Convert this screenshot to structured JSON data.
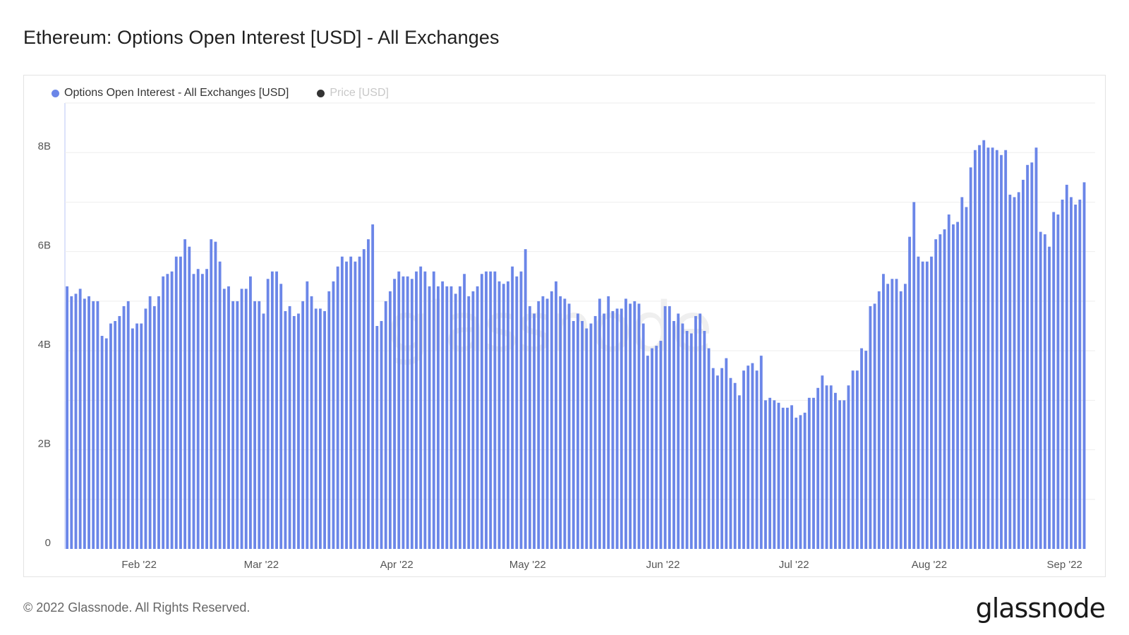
{
  "title": "Ethereum: Options Open Interest [USD] - All Exchanges",
  "footer": "© 2022 Glassnode. All Rights Reserved.",
  "brand": "glassnode",
  "watermark": "glassnode",
  "chart_data": {
    "type": "bar",
    "legend": [
      {
        "name": "Options Open Interest - All Exchanges [USD]",
        "color": "#6b86e8",
        "active": true
      },
      {
        "name": "Price [USD]",
        "color": "#333333",
        "active": false
      }
    ],
    "legend_position": "top-left",
    "grid": true,
    "x_start": "2022-01-15",
    "x_range": [
      "2022-01-15",
      "2022-09-08"
    ],
    "x_ticks": [
      {
        "date": "2022-02-01",
        "label": "Feb '22"
      },
      {
        "date": "2022-03-01",
        "label": "Mar '22"
      },
      {
        "date": "2022-04-01",
        "label": "Apr '22"
      },
      {
        "date": "2022-05-01",
        "label": "May '22"
      },
      {
        "date": "2022-06-01",
        "label": "Jun '22"
      },
      {
        "date": "2022-07-01",
        "label": "Jul '22"
      },
      {
        "date": "2022-08-01",
        "label": "Aug '22"
      },
      {
        "date": "2022-09-01",
        "label": "Sep '22"
      }
    ],
    "y_ticks": [
      {
        "value": 0,
        "label": "0"
      },
      {
        "value": 2,
        "label": "2B"
      },
      {
        "value": 4,
        "label": "4B"
      },
      {
        "value": 6,
        "label": "6B"
      },
      {
        "value": 8,
        "label": "8B"
      }
    ],
    "ylim": [
      0,
      9
    ],
    "values": [
      5.3,
      5.1,
      5.15,
      5.25,
      5.05,
      5.1,
      5.0,
      5.0,
      4.3,
      4.25,
      4.55,
      4.6,
      4.7,
      4.9,
      5.0,
      4.45,
      4.55,
      4.55,
      4.85,
      5.1,
      4.9,
      5.1,
      5.5,
      5.55,
      5.6,
      5.9,
      5.9,
      6.25,
      6.1,
      5.55,
      5.65,
      5.55,
      5.65,
      6.25,
      6.2,
      5.8,
      5.25,
      5.3,
      5.0,
      5.0,
      5.25,
      5.25,
      5.5,
      5.0,
      5.0,
      4.75,
      5.45,
      5.6,
      5.6,
      5.35,
      4.8,
      4.9,
      4.7,
      4.75,
      5.0,
      5.4,
      5.1,
      4.85,
      4.85,
      4.8,
      5.2,
      5.4,
      5.7,
      5.9,
      5.8,
      5.9,
      5.8,
      5.9,
      6.05,
      6.25,
      6.55,
      4.5,
      4.6,
      5.0,
      5.2,
      5.45,
      5.6,
      5.5,
      5.5,
      5.45,
      5.6,
      5.7,
      5.6,
      5.3,
      5.6,
      5.3,
      5.4,
      5.3,
      5.3,
      5.15,
      5.3,
      5.55,
      5.1,
      5.2,
      5.3,
      5.55,
      5.6,
      5.6,
      5.6,
      5.4,
      5.35,
      5.4,
      5.7,
      5.5,
      5.6,
      6.05,
      4.9,
      4.75,
      5.0,
      5.1,
      5.05,
      5.2,
      5.4,
      5.1,
      5.05,
      4.95,
      4.6,
      4.75,
      4.6,
      4.45,
      4.55,
      4.7,
      5.05,
      4.75,
      5.1,
      4.8,
      4.85,
      4.85,
      5.05,
      4.95,
      5.0,
      4.95,
      4.55,
      3.9,
      4.05,
      4.1,
      4.2,
      4.9,
      4.9,
      4.6,
      4.75,
      4.55,
      4.4,
      4.35,
      4.7,
      4.75,
      4.4,
      4.05,
      3.65,
      3.5,
      3.65,
      3.85,
      3.45,
      3.35,
      3.1,
      3.6,
      3.7,
      3.75,
      3.6,
      3.9,
      3.0,
      3.05,
      3.0,
      2.95,
      2.85,
      2.85,
      2.9,
      2.65,
      2.7,
      2.75,
      3.05,
      3.05,
      3.25,
      3.5,
      3.3,
      3.3,
      3.15,
      3.0,
      3.0,
      3.3,
      3.6,
      3.6,
      4.05,
      4.0,
      4.9,
      4.95,
      5.2,
      5.55,
      5.35,
      5.45,
      5.45,
      5.2,
      5.35,
      6.3,
      7.0,
      5.9,
      5.8,
      5.8,
      5.9,
      6.25,
      6.35,
      6.45,
      6.75,
      6.55,
      6.6,
      7.1,
      6.9,
      7.7,
      8.05,
      8.15,
      8.25,
      8.1,
      8.1,
      8.05,
      7.95,
      8.05,
      7.15,
      7.1,
      7.2,
      7.45,
      7.75,
      7.8,
      8.1,
      6.4,
      6.35,
      6.1,
      6.8,
      6.75,
      7.05,
      7.35,
      7.1,
      6.95,
      7.05,
      7.4
    ]
  }
}
